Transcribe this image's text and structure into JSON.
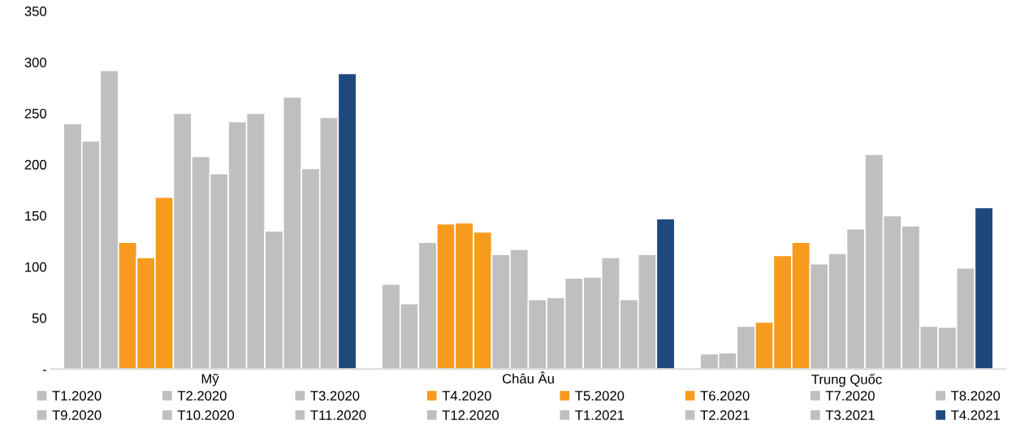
{
  "chart_data": {
    "type": "bar",
    "categories": [
      "Mỹ",
      "Châu Âu",
      "Trung Quốc"
    ],
    "series": [
      {
        "name": "T1.2020",
        "color": "#bfbfbf",
        "values": [
          240,
          83,
          15
        ]
      },
      {
        "name": "T2.2020",
        "color": "#bfbfbf",
        "values": [
          223,
          64,
          16
        ]
      },
      {
        "name": "T3.2020",
        "color": "#bfbfbf",
        "values": [
          292,
          124,
          42
        ]
      },
      {
        "name": "T4.2020",
        "color": "#f79b1f",
        "values": [
          124,
          142,
          46
        ]
      },
      {
        "name": "T5.2020",
        "color": "#f79b1f",
        "values": [
          109,
          143,
          111
        ]
      },
      {
        "name": "T6.2020",
        "color": "#f79b1f",
        "values": [
          168,
          134,
          124
        ]
      },
      {
        "name": "T7.2020",
        "color": "#bfbfbf",
        "values": [
          250,
          112,
          103
        ]
      },
      {
        "name": "T8.2020",
        "color": "#bfbfbf",
        "values": [
          208,
          117,
          113
        ]
      },
      {
        "name": "T9.2020",
        "color": "#bfbfbf",
        "values": [
          191,
          68,
          137
        ]
      },
      {
        "name": "T10.2020",
        "color": "#bfbfbf",
        "values": [
          242,
          70,
          210
        ]
      },
      {
        "name": "T11.2020",
        "color": "#bfbfbf",
        "values": [
          250,
          89,
          150
        ]
      },
      {
        "name": "T12.2020",
        "color": "#bfbfbf",
        "values": [
          135,
          90,
          140
        ]
      },
      {
        "name": "T1.2021",
        "color": "#bfbfbf",
        "values": [
          266,
          109,
          42
        ]
      },
      {
        "name": "T2.2021",
        "color": "#bfbfbf",
        "values": [
          196,
          68,
          41
        ]
      },
      {
        "name": "T3.2021",
        "color": "#bfbfbf",
        "values": [
          246,
          112,
          99
        ]
      },
      {
        "name": "T4.2021",
        "color": "#1f497d",
        "values": [
          289,
          147,
          158
        ]
      }
    ],
    "ylim": [
      0,
      350
    ],
    "yticks": [
      {
        "value": 0,
        "label": "-"
      },
      50,
      100,
      150,
      200,
      250,
      300,
      350
    ],
    "grid": false,
    "legend": "bottom"
  }
}
